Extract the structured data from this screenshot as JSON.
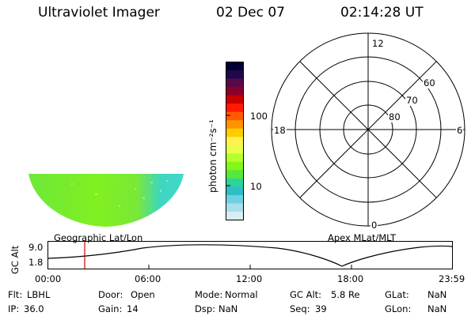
{
  "header": {
    "instrument": "Ultraviolet Imager",
    "date": "02 Dec 07",
    "time": "02:14:28 UT"
  },
  "colorbar": {
    "unit_label": "photon cm⁻²s⁻¹",
    "ticks": [
      "100",
      "10"
    ],
    "colors": [
      "#000033",
      "#20084a",
      "#560a4a",
      "#8a002a",
      "#c80000",
      "#ff1a00",
      "#ff5a00",
      "#ff9400",
      "#ffcc00",
      "#fff24a",
      "#e8ff4a",
      "#b6ff2a",
      "#86f51a",
      "#56e83a",
      "#2ed39a",
      "#2ebfc6",
      "#6fd0e0",
      "#a8dfea",
      "#d8eef2"
    ]
  },
  "polar": {
    "top": "12",
    "left": "18",
    "right": "6",
    "bottom": "0",
    "lat_labels": [
      "60",
      "70",
      "80"
    ]
  },
  "map_labels": {
    "geographic": "Geographic Lat/Lon",
    "apex": "Apex MLat/MLT"
  },
  "altitude_plot": {
    "axis_label": "GC Alt",
    "y_max": "9.0",
    "y_min": "1.8",
    "x_ticks": [
      "00:00",
      "06:00",
      "12:00",
      "18:00",
      "23:59"
    ],
    "marker_color": "#cc0000",
    "curve_color": "#000000"
  },
  "info": {
    "row1": [
      {
        "key": "Flt:",
        "val": "LBHL"
      },
      {
        "key": "Door:",
        "val": "Open"
      },
      {
        "key": "Mode:",
        "val": "Normal"
      },
      {
        "key": "GC Alt:",
        "val": "5.8 Re"
      },
      {
        "key": "GLat:",
        "val": "NaN"
      }
    ],
    "row2": [
      {
        "key": "IP:",
        "val": "36.0"
      },
      {
        "key": "Gain:",
        "val": "14"
      },
      {
        "key": "Dsp:",
        "val": "NaN"
      },
      {
        "key": "Seq:",
        "val": "39"
      },
      {
        "key": "GLon:",
        "val": "NaN"
      }
    ]
  }
}
